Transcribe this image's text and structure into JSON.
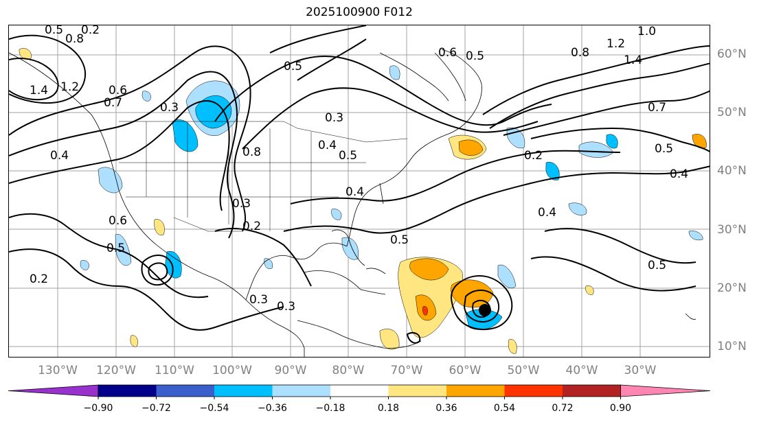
{
  "title": "2025100900 F012",
  "lat_labels": [
    "60°N",
    "50°N",
    "40°N",
    "30°N",
    "20°N",
    "10°N"
  ],
  "lon_labels": [
    "130°W",
    "120°W",
    "110°W",
    "100°W",
    "90°W",
    "80°W",
    "70°W",
    "60°W",
    "50°W",
    "40°W",
    "30°W"
  ],
  "contour_labels": [
    "0.5",
    "0.2",
    "0.8",
    "1.4",
    "1.2",
    "0.6",
    "0.7",
    "0.3",
    "0.4",
    "0.5",
    "0.3",
    "0.4",
    "0.8",
    "0.3",
    "0.2",
    "0.4",
    "0.5",
    "1.0",
    "1.2",
    "1.4",
    "0.6",
    "0.5",
    "0.8",
    "0.7",
    "0.5",
    "0.4",
    "0.6",
    "0.5",
    "0.2",
    "0.3",
    "0.5",
    "0.3",
    "0.5",
    "0.2",
    "0.4"
  ],
  "colorbar": {
    "ticks": [
      "−0.90",
      "−0.72",
      "−0.54",
      "−0.36",
      "−0.18",
      "0.18",
      "0.36",
      "0.54",
      "0.72",
      "0.90"
    ],
    "colors": [
      "#9932CC",
      "#00008B",
      "#3A5FCD",
      "#00BFFF",
      "#ADDFFF",
      "#FFFFFF",
      "#FFE680",
      "#FFA500",
      "#FF3300",
      "#B22222",
      "#FF85B3"
    ]
  },
  "shading_colors": {
    "neg_light": "#ADDFFF",
    "neg_mid": "#00BFFF",
    "pos_light": "#FFE680",
    "pos_mid": "#FFA500",
    "pos_strong": "#FF3300"
  }
}
